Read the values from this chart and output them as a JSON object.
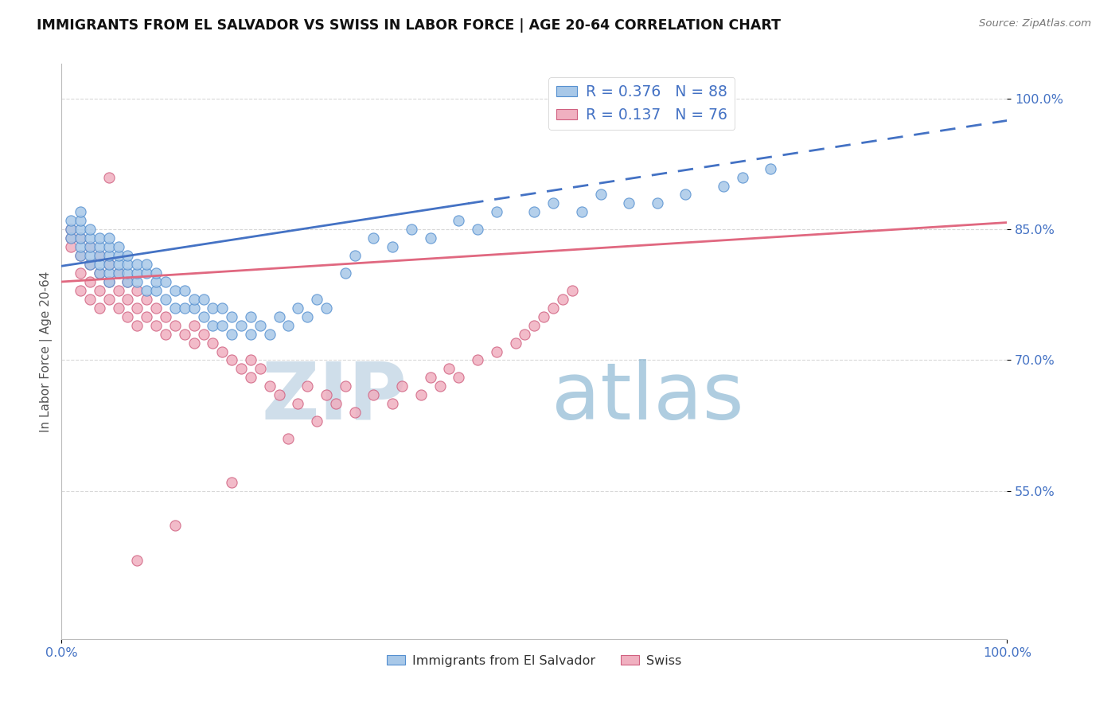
{
  "title": "IMMIGRANTS FROM EL SALVADOR VS SWISS IN LABOR FORCE | AGE 20-64 CORRELATION CHART",
  "source": "Source: ZipAtlas.com",
  "ylabel": "In Labor Force | Age 20-64",
  "watermark_zip": "ZIP",
  "watermark_atlas": "atlas",
  "xmin": 0.0,
  "xmax": 1.0,
  "ymin": 0.38,
  "ymax": 1.04,
  "yticks": [
    0.55,
    0.7,
    0.85,
    1.0
  ],
  "ytick_labels": [
    "55.0%",
    "70.0%",
    "85.0%",
    "100.0%"
  ],
  "xtick_labels": [
    "0.0%",
    "100.0%"
  ],
  "legend_line1": "R = 0.376   N = 88",
  "legend_line2": "R = 0.137   N = 76",
  "blue_face": "#a8c8e8",
  "blue_edge": "#5590d0",
  "pink_face": "#f0b0c0",
  "pink_edge": "#d06080",
  "blue_line_color": "#4472c4",
  "pink_line_color": "#e06880",
  "axis_tick_color": "#4472c4",
  "grid_color": "#d8d8d8",
  "watermark_zip_color": "#b0c8dc",
  "watermark_atlas_color": "#7aaccc",
  "blue_line_x0": 0.0,
  "blue_line_x1": 1.0,
  "blue_line_y0": 0.808,
  "blue_line_y1": 0.975,
  "pink_line_x0": 0.0,
  "pink_line_x1": 1.0,
  "pink_line_y0": 0.79,
  "pink_line_y1": 0.858,
  "blue_scatter_x": [
    0.01,
    0.01,
    0.01,
    0.02,
    0.02,
    0.02,
    0.02,
    0.02,
    0.02,
    0.03,
    0.03,
    0.03,
    0.03,
    0.03,
    0.04,
    0.04,
    0.04,
    0.04,
    0.04,
    0.05,
    0.05,
    0.05,
    0.05,
    0.05,
    0.05,
    0.06,
    0.06,
    0.06,
    0.06,
    0.07,
    0.07,
    0.07,
    0.07,
    0.08,
    0.08,
    0.08,
    0.09,
    0.09,
    0.09,
    0.1,
    0.1,
    0.1,
    0.11,
    0.11,
    0.12,
    0.12,
    0.13,
    0.13,
    0.14,
    0.14,
    0.15,
    0.15,
    0.16,
    0.16,
    0.17,
    0.17,
    0.18,
    0.18,
    0.19,
    0.2,
    0.2,
    0.21,
    0.22,
    0.23,
    0.24,
    0.25,
    0.26,
    0.27,
    0.28,
    0.3,
    0.31,
    0.33,
    0.35,
    0.37,
    0.39,
    0.42,
    0.44,
    0.46,
    0.5,
    0.52,
    0.55,
    0.57,
    0.6,
    0.63,
    0.66,
    0.7,
    0.72,
    0.75
  ],
  "blue_scatter_y": [
    0.84,
    0.85,
    0.86,
    0.82,
    0.83,
    0.84,
    0.85,
    0.86,
    0.87,
    0.81,
    0.82,
    0.83,
    0.84,
    0.85,
    0.8,
    0.81,
    0.82,
    0.83,
    0.84,
    0.79,
    0.8,
    0.81,
    0.82,
    0.83,
    0.84,
    0.8,
    0.81,
    0.82,
    0.83,
    0.79,
    0.8,
    0.81,
    0.82,
    0.79,
    0.8,
    0.81,
    0.78,
    0.8,
    0.81,
    0.78,
    0.79,
    0.8,
    0.77,
    0.79,
    0.76,
    0.78,
    0.76,
    0.78,
    0.76,
    0.77,
    0.75,
    0.77,
    0.74,
    0.76,
    0.74,
    0.76,
    0.73,
    0.75,
    0.74,
    0.73,
    0.75,
    0.74,
    0.73,
    0.75,
    0.74,
    0.76,
    0.75,
    0.77,
    0.76,
    0.8,
    0.82,
    0.84,
    0.83,
    0.85,
    0.84,
    0.86,
    0.85,
    0.87,
    0.87,
    0.88,
    0.87,
    0.89,
    0.88,
    0.88,
    0.89,
    0.9,
    0.91,
    0.92
  ],
  "pink_scatter_x": [
    0.01,
    0.01,
    0.01,
    0.02,
    0.02,
    0.02,
    0.02,
    0.03,
    0.03,
    0.03,
    0.03,
    0.04,
    0.04,
    0.04,
    0.04,
    0.05,
    0.05,
    0.05,
    0.06,
    0.06,
    0.06,
    0.07,
    0.07,
    0.07,
    0.08,
    0.08,
    0.08,
    0.09,
    0.09,
    0.1,
    0.1,
    0.11,
    0.11,
    0.12,
    0.13,
    0.14,
    0.14,
    0.15,
    0.16,
    0.17,
    0.18,
    0.19,
    0.2,
    0.2,
    0.21,
    0.22,
    0.23,
    0.25,
    0.26,
    0.28,
    0.29,
    0.3,
    0.31,
    0.33,
    0.35,
    0.36,
    0.38,
    0.39,
    0.4,
    0.41,
    0.42,
    0.44,
    0.46,
    0.48,
    0.49,
    0.5,
    0.51,
    0.52,
    0.53,
    0.54,
    0.24,
    0.27,
    0.18,
    0.12,
    0.08,
    0.05
  ],
  "pink_scatter_y": [
    0.84,
    0.85,
    0.83,
    0.82,
    0.84,
    0.8,
    0.78,
    0.83,
    0.81,
    0.79,
    0.77,
    0.82,
    0.8,
    0.78,
    0.76,
    0.81,
    0.79,
    0.77,
    0.8,
    0.78,
    0.76,
    0.79,
    0.77,
    0.75,
    0.78,
    0.76,
    0.74,
    0.77,
    0.75,
    0.76,
    0.74,
    0.75,
    0.73,
    0.74,
    0.73,
    0.72,
    0.74,
    0.73,
    0.72,
    0.71,
    0.7,
    0.69,
    0.68,
    0.7,
    0.69,
    0.67,
    0.66,
    0.65,
    0.67,
    0.66,
    0.65,
    0.67,
    0.64,
    0.66,
    0.65,
    0.67,
    0.66,
    0.68,
    0.67,
    0.69,
    0.68,
    0.7,
    0.71,
    0.72,
    0.73,
    0.74,
    0.75,
    0.76,
    0.77,
    0.78,
    0.61,
    0.63,
    0.56,
    0.51,
    0.47,
    0.91
  ]
}
